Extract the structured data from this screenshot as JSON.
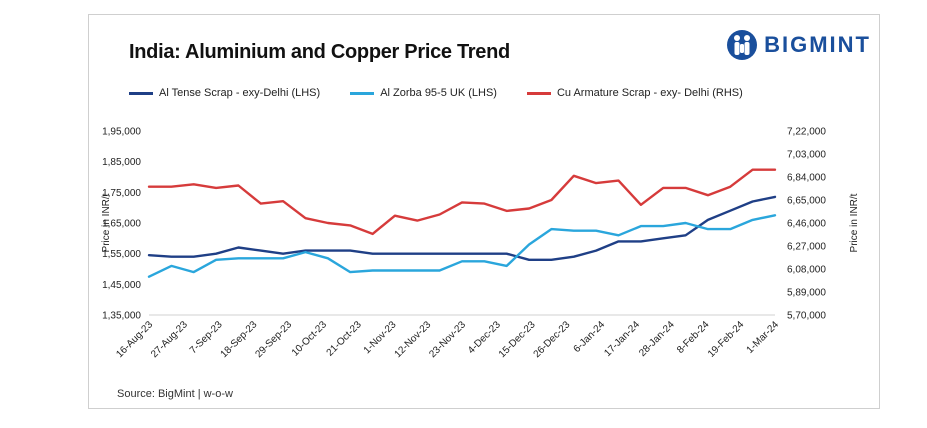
{
  "header": {
    "title": "India: Aluminium and Copper Price Trend"
  },
  "brand": {
    "name": "BIGMINT",
    "color": "#1a4f9c"
  },
  "source_text": "Source: BigMint | w-o-w",
  "chart_data": {
    "type": "line",
    "title": "India: Aluminium and Copper Price Trend",
    "ylabel_left": "Price in INR/t",
    "ylabel_right": "Price in INR/t",
    "ylim_left": [
      135000,
      195000
    ],
    "ylim_right": [
      570000,
      722000
    ],
    "yticks_left": [
      "1,35,000",
      "1,45,000",
      "1,55,000",
      "1,65,000",
      "1,75,000",
      "1,85,000",
      "1,95,000"
    ],
    "yticks_right": [
      "5,70,000",
      "5,89,000",
      "6,08,000",
      "6,27,000",
      "6,46,000",
      "6,65,000",
      "6,84,000",
      "7,03,000",
      "7,22,000"
    ],
    "x_tick_labels": [
      "16-Aug-23",
      "27-Aug-23",
      "7-Sep-23",
      "18-Sep-23",
      "29-Sep-23",
      "10-Oct-23",
      "21-Oct-23",
      "1-Nov-23",
      "12-Nov-23",
      "23-Nov-23",
      "4-Dec-23",
      "15-Dec-23",
      "26-Dec-23",
      "6-Jan-24",
      "17-Jan-24",
      "28-Jan-24",
      "8-Feb-24",
      "19-Feb-24",
      "1-Mar-24"
    ],
    "x_range": [
      0,
      28
    ],
    "grid": false,
    "legend_position": "top",
    "series": [
      {
        "name": "Al Tense Scrap - exy-Delhi (LHS)",
        "axis": "left",
        "color": "#1f3f86",
        "x": [
          0,
          1,
          2,
          3,
          4,
          5,
          6,
          7,
          8,
          9,
          10,
          11,
          12,
          13,
          14,
          15,
          16,
          17,
          18,
          19,
          20,
          21,
          22,
          23,
          24,
          25,
          26,
          27,
          28
        ],
        "values": [
          154500,
          154000,
          154000,
          155000,
          157000,
          156000,
          155000,
          156000,
          156000,
          156000,
          155000,
          155000,
          155000,
          155000,
          155000,
          155000,
          155000,
          153000,
          153000,
          154000,
          156000,
          159000,
          159000,
          160000,
          161000,
          166000,
          169000,
          172000,
          173500
        ]
      },
      {
        "name": "Al Zorba 95-5 UK (LHS)",
        "axis": "left",
        "color": "#2aa6dc",
        "x": [
          0,
          1,
          2,
          3,
          4,
          5,
          6,
          7,
          8,
          9,
          10,
          11,
          12,
          13,
          14,
          15,
          16,
          17,
          18,
          19,
          20,
          21,
          22,
          23,
          24,
          25,
          26,
          27,
          28
        ],
        "values": [
          147500,
          151000,
          149000,
          153000,
          153500,
          153500,
          153500,
          155500,
          153500,
          149000,
          149500,
          149500,
          149500,
          149500,
          152500,
          152500,
          151000,
          158000,
          163000,
          162500,
          162500,
          161000,
          164000,
          164000,
          165000,
          163000,
          163000,
          166000,
          167500
        ]
      },
      {
        "name": "Cu Armature Scrap - exy- Delhi (RHS)",
        "axis": "right",
        "color": "#d63b3b",
        "x": [
          0,
          1,
          2,
          3,
          4,
          5,
          6,
          7,
          8,
          9,
          10,
          11,
          12,
          13,
          14,
          15,
          16,
          17,
          18,
          19,
          20,
          21,
          22,
          23,
          24,
          25,
          26,
          27,
          28
        ],
        "values": [
          676000,
          676000,
          678000,
          675000,
          677000,
          662000,
          664000,
          650000,
          646000,
          644000,
          637000,
          652000,
          648000,
          653000,
          663000,
          662000,
          656000,
          658000,
          665000,
          685000,
          679000,
          681000,
          661000,
          675000,
          675000,
          669000,
          676000,
          690000,
          690000
        ]
      }
    ]
  }
}
